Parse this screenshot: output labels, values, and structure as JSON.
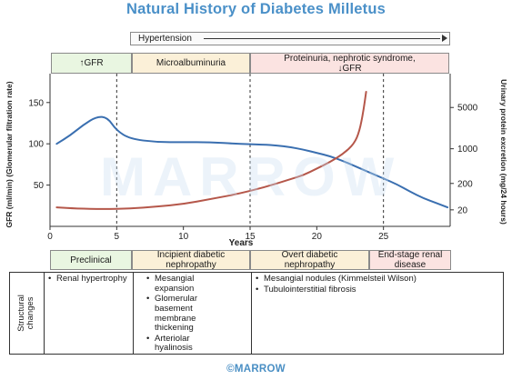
{
  "title": "Natural History of Diabetes Milletus",
  "hypertension_label": "Hypertension",
  "top_bands": [
    {
      "label": "↑GFR",
      "color": "#e9f6e1"
    },
    {
      "label": "Microalbuminuria",
      "color": "#fbf0d8"
    },
    {
      "label": "Proteinuria, nephrotic syndrome, ↓GFR",
      "color": "#fbe3e1"
    }
  ],
  "bottom_stages": [
    {
      "label": "Preclinical"
    },
    {
      "label": "Incipient diabetic nephropathy"
    },
    {
      "label": "Overt diabetic nephropathy"
    },
    {
      "label": "End-stage renal disease"
    }
  ],
  "structural_table": {
    "row_label": "Structural changes",
    "columns": [
      [
        "Renal hypertrophy"
      ],
      [
        "Mesangial expansion",
        "Glomerular basement membrane thickening",
        "Arteriolar hyalinosis"
      ],
      [
        "Mesangial nodules (Kimmelsteil Wilson)",
        "Tubulointerstitial fibrosis"
      ]
    ]
  },
  "watermark": "MARROW",
  "footer": "©MARROW",
  "chart_data": {
    "type": "line",
    "xlabel": "Years",
    "ylabel": "GFR (ml/min) (Glomerular filtration rate)",
    "y2label": "Urinary protein excretion (mg/24 hours)",
    "x_ticks": [
      0,
      5,
      10,
      15,
      20,
      25
    ],
    "xlim": [
      0,
      30
    ],
    "y_ticks": [
      50,
      100,
      150
    ],
    "ylim": [
      0,
      185
    ],
    "y2_ticks": [
      {
        "label": "20",
        "at_gfr": 20
      },
      {
        "label": "200",
        "at_gfr": 52
      },
      {
        "label": "1000",
        "at_gfr": 94
      },
      {
        "label": "5000",
        "at_gfr": 144
      }
    ],
    "stage_dividers_x": [
      5,
      15,
      25
    ],
    "series": [
      {
        "color": "#3a6fb0",
        "axis": "left",
        "points": [
          [
            0.5,
            100
          ],
          [
            1.5,
            110
          ],
          [
            2.5,
            123
          ],
          [
            3.5,
            133
          ],
          [
            4.3,
            132
          ],
          [
            5,
            116
          ],
          [
            6,
            106
          ],
          [
            8,
            102
          ],
          [
            10,
            102
          ],
          [
            12,
            102
          ],
          [
            14,
            100
          ],
          [
            16,
            99
          ],
          [
            17,
            98
          ],
          [
            18,
            96
          ],
          [
            19,
            93
          ],
          [
            20,
            89
          ],
          [
            21,
            85
          ],
          [
            22,
            79
          ],
          [
            23,
            72
          ],
          [
            24,
            65
          ],
          [
            25,
            58
          ],
          [
            26,
            51
          ],
          [
            27,
            42
          ],
          [
            28,
            34
          ],
          [
            29,
            28
          ],
          [
            29.8,
            23
          ]
        ]
      },
      {
        "color": "#b5574a",
        "axis": "right",
        "points": [
          [
            0.5,
            23
          ],
          [
            2,
            21.5
          ],
          [
            4,
            21
          ],
          [
            6,
            21.5
          ],
          [
            8,
            24
          ],
          [
            10,
            27
          ],
          [
            12,
            33
          ],
          [
            14,
            39
          ],
          [
            16,
            47
          ],
          [
            18,
            57
          ],
          [
            19,
            62
          ],
          [
            20,
            70
          ],
          [
            21,
            78
          ],
          [
            22,
            88
          ],
          [
            22.8,
            100
          ],
          [
            23.2,
            115
          ],
          [
            23.5,
            140
          ],
          [
            23.7,
            163
          ]
        ]
      }
    ]
  }
}
